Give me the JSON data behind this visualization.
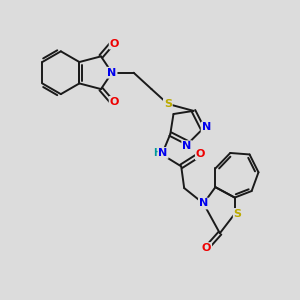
{
  "bg_color": "#dcdcdc",
  "bond_color": "#1a1a1a",
  "bond_width": 1.4,
  "atom_colors": {
    "N": "#0000ee",
    "O": "#ee0000",
    "S": "#bbaa00",
    "H": "#009999",
    "C": "#1a1a1a"
  },
  "figsize": [
    3.0,
    3.0
  ],
  "dpi": 100
}
